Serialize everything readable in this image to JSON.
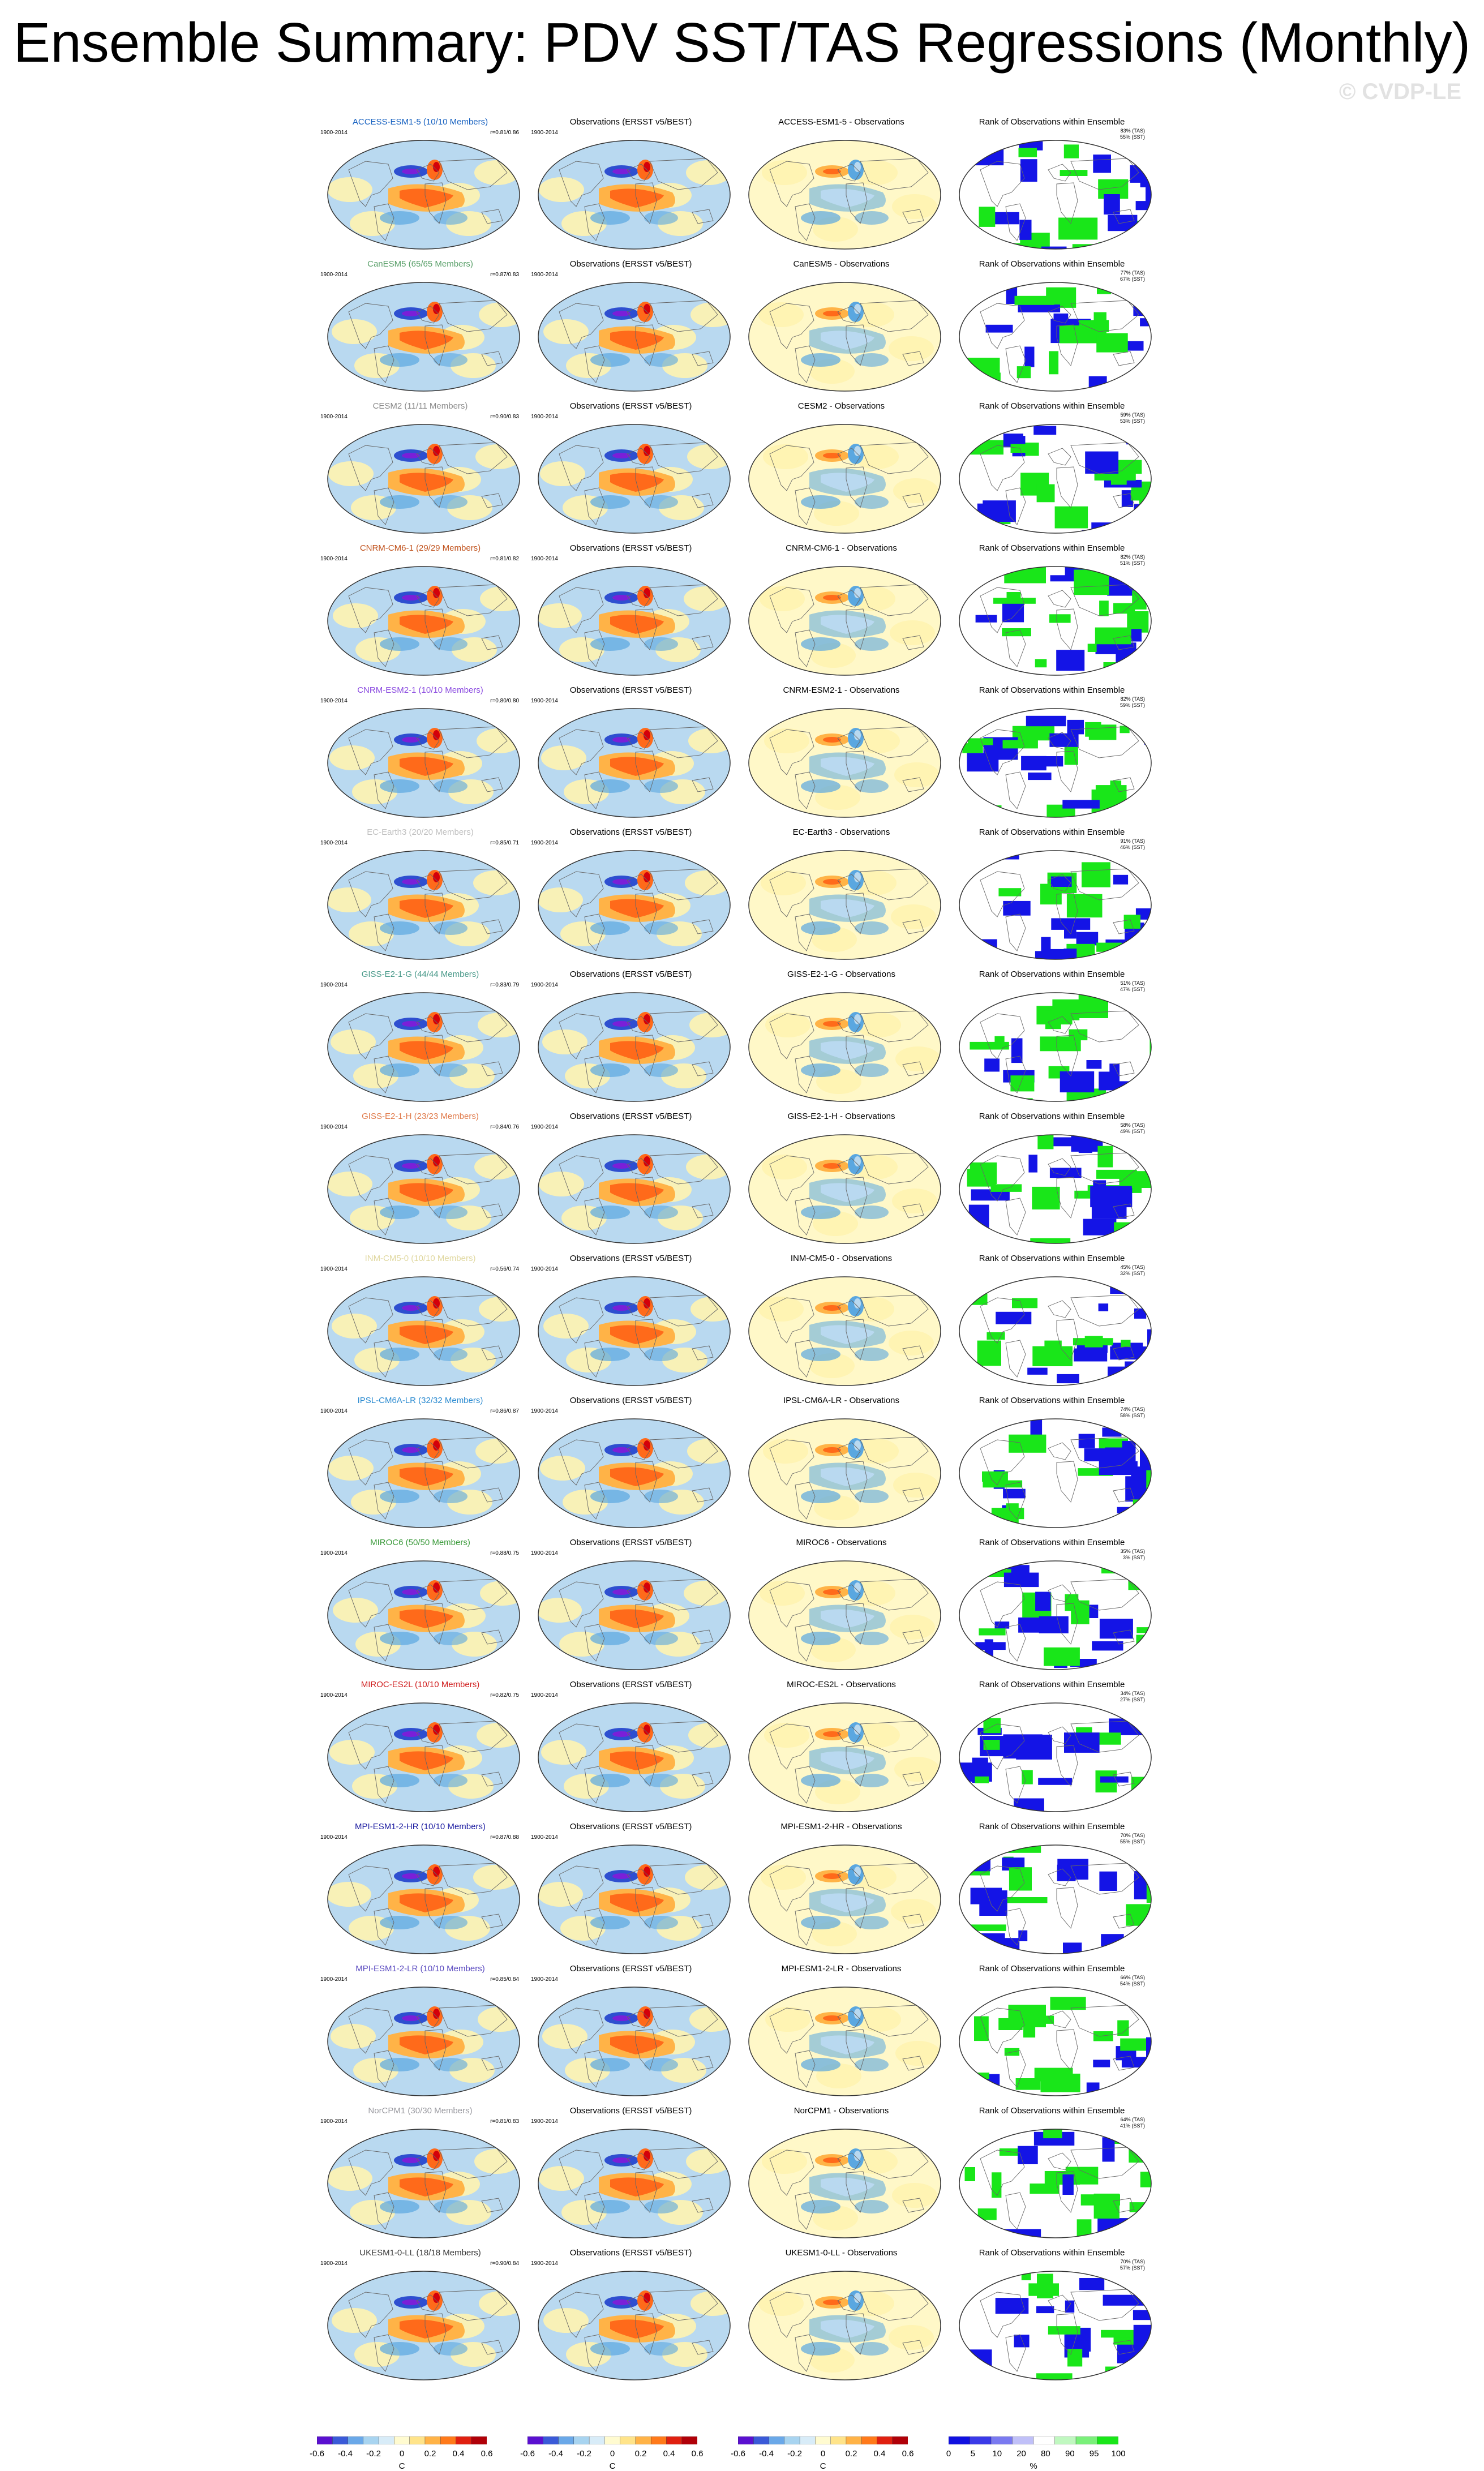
{
  "title": "Ensemble Summary: PDV SST/TAS Regressions (Monthly)",
  "watermark": "© CVDP-LE",
  "years": "1900-2014",
  "obs_label": "Observations (ERSST v5/BEST)",
  "rank_label": "Rank of Observations within Ensemble",
  "colors": {
    "ocean_neg_light": "#b9d9f0",
    "ocean_neg": "#5aa7e0",
    "ocean_neg_strong": "#2e4fd0",
    "ocean_neg_core": "#7a1fd8",
    "neutral": "#fff3b0",
    "pos": "#ffb347",
    "pos_strong": "#ff6a1a",
    "pos_core": "#d4000a",
    "rank_low": "#1414e6",
    "rank_high": "#19e619",
    "rank_mid": "#ffffff"
  },
  "models": [
    {
      "name": "ACCESS-ESM1-5 (10/10 Members)",
      "short": "ACCESS-ESM1-5",
      "r": "r=0.81/0.86",
      "tas": "83% (TAS)",
      "sst": "55% (SST)",
      "color": "#1560c0"
    },
    {
      "name": "CanESM5 (65/65 Members)",
      "short": "CanESM5",
      "r": "r=0.87/0.83",
      "tas": "77% (TAS)",
      "sst": "67% (SST)",
      "color": "#5aa06a"
    },
    {
      "name": "CESM2 (11/11 Members)",
      "short": "CESM2",
      "r": "r=0.90/0.83",
      "tas": "59% (TAS)",
      "sst": "53% (SST)",
      "color": "#8a8a8a"
    },
    {
      "name": "CNRM-CM6-1 (29/29 Members)",
      "short": "CNRM-CM6-1",
      "r": "r=0.81/0.82",
      "tas": "82% (TAS)",
      "sst": "51% (SST)",
      "color": "#c0501a"
    },
    {
      "name": "CNRM-ESM2-1 (10/10 Members)",
      "short": "CNRM-ESM2-1",
      "r": "r=0.80/0.80",
      "tas": "82% (TAS)",
      "sst": "59% (SST)",
      "color": "#8a4ae0"
    },
    {
      "name": "EC-Earth3 (20/20 Members)",
      "short": "EC-Earth3",
      "r": "r=0.85/0.71",
      "tas": "91% (TAS)",
      "sst": "46% (SST)",
      "color": "#c0c0c0"
    },
    {
      "name": "GISS-E2-1-G (44/44 Members)",
      "short": "GISS-E2-1-G",
      "r": "r=0.83/0.79",
      "tas": "51% (TAS)",
      "sst": "47% (SST)",
      "color": "#4a9a8a"
    },
    {
      "name": "GISS-E2-1-H (23/23 Members)",
      "short": "GISS-E2-1-H",
      "r": "r=0.84/0.76",
      "tas": "58% (TAS)",
      "sst": "49% (SST)",
      "color": "#e07a4a"
    },
    {
      "name": "INM-CM5-0 (10/10 Members)",
      "short": "INM-CM5-0",
      "r": "r=0.56/0.74",
      "tas": "45% (TAS)",
      "sst": "32% (SST)",
      "color": "#e0d8a0"
    },
    {
      "name": "IPSL-CM6A-LR (32/32 Members)",
      "short": "IPSL-CM6A-LR",
      "r": "r=0.86/0.87",
      "tas": "74% (TAS)",
      "sst": "58% (SST)",
      "color": "#2a8ad0"
    },
    {
      "name": "MIROC6 (50/50 Members)",
      "short": "MIROC6",
      "r": "r=0.88/0.75",
      "tas": "35% (TAS)",
      "sst": "3% (SST)",
      "color": "#3a9a3a"
    },
    {
      "name": "MIROC-ES2L (10/10 Members)",
      "short": "MIROC-ES2L",
      "r": "r=0.82/0.75",
      "tas": "34% (TAS)",
      "sst": "27% (SST)",
      "color": "#d02020"
    },
    {
      "name": "MPI-ESM1-2-HR (10/10 Members)",
      "short": "MPI-ESM1-2-HR",
      "r": "r=0.87/0.88",
      "tas": "70% (TAS)",
      "sst": "55% (SST)",
      "color": "#1a1aa0"
    },
    {
      "name": "MPI-ESM1-2-LR (10/10 Members)",
      "short": "MPI-ESM1-2-LR",
      "r": "r=0.85/0.84",
      "tas": "66% (TAS)",
      "sst": "54% (SST)",
      "color": "#5a4ac0"
    },
    {
      "name": "NorCPM1 (30/30 Members)",
      "short": "NorCPM1",
      "r": "r=0.81/0.83",
      "tas": "64% (TAS)",
      "sst": "41% (SST)",
      "color": "#9a9aa0"
    },
    {
      "name": "UKESM1-0-LL (18/18 Members)",
      "short": "UKESM1-0-LL",
      "r": "r=0.90/0.84",
      "tas": "70% (TAS)",
      "sst": "57% (SST)",
      "color": "#3a3a3a"
    }
  ],
  "colorbar": {
    "anom_ticks": [
      "-0.6",
      "-0.4",
      "-0.2",
      "0",
      "0.2",
      "0.4",
      "0.6"
    ],
    "anom_unit": "C",
    "rank_ticks": [
      "0",
      "5",
      "10",
      "20",
      "80",
      "90",
      "95",
      "100"
    ],
    "rank_unit": "%"
  }
}
